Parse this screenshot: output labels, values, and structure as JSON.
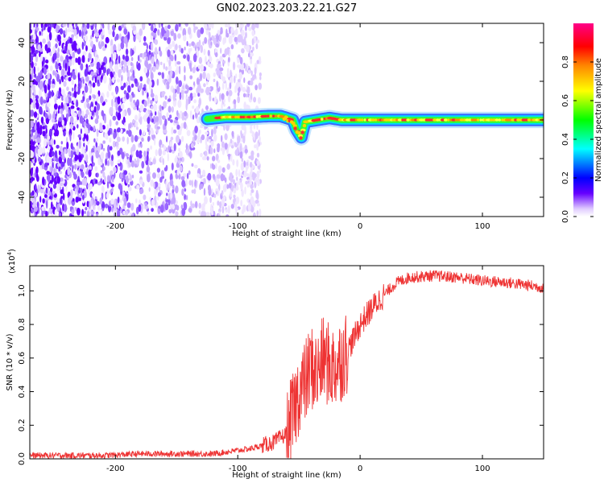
{
  "title": "GN02.2023.203.22.21.G27",
  "chart_data": [
    {
      "type": "heatmap",
      "xlabel": "Height of straight line (km)",
      "ylabel": "Frequency (Hz)",
      "xlim": [
        -270,
        150
      ],
      "ylim": [
        -50,
        50
      ],
      "x_ticks": [
        -200,
        -100,
        0,
        100
      ],
      "x_tick_labels": [
        "-200",
        "-100",
        "0",
        "100"
      ],
      "y_ticks": [
        40,
        20,
        0,
        -20,
        -40
      ],
      "y_tick_labels": [
        "40",
        "20",
        "0",
        "-20",
        "-40"
      ],
      "colorbar": {
        "label": "Normalized spectral amplitude",
        "range": [
          0,
          1
        ],
        "ticks": [
          0.0,
          0.2,
          0.4,
          0.6,
          0.8
        ],
        "tick_labels": [
          "0.0",
          "0.2",
          "0.4",
          "0.6",
          "0.8"
        ],
        "colormap": [
          "#ffffff",
          "#5500ff",
          "#0000ff",
          "#00ffff",
          "#00ff00",
          "#ffff00",
          "#ff8800",
          "#ff0000",
          "#ff0088"
        ]
      },
      "noise_region_x": [
        -270,
        -85
      ],
      "signal_band": {
        "x_start": -125,
        "x_end": 150,
        "frequency_hz": 0,
        "halfwidth_hz": 2
      },
      "signal_track": [
        {
          "x": -125,
          "y": 0.5
        },
        {
          "x": -110,
          "y": 1.5
        },
        {
          "x": -90,
          "y": 1.5
        },
        {
          "x": -75,
          "y": 2
        },
        {
          "x": -65,
          "y": 2
        },
        {
          "x": -60,
          "y": 1
        },
        {
          "x": -55,
          "y": 0
        },
        {
          "x": -52,
          "y": -5
        },
        {
          "x": -48,
          "y": -9
        },
        {
          "x": -45,
          "y": -1
        },
        {
          "x": -35,
          "y": 0
        },
        {
          "x": -25,
          "y": 1
        },
        {
          "x": -15,
          "y": 0
        },
        {
          "x": 0,
          "y": 0
        },
        {
          "x": 150,
          "y": 0
        }
      ]
    },
    {
      "type": "line",
      "xlabel": "Height of straight line (km)",
      "ylabel": "SNR (10 * v/v)",
      "scale_label": "(x10",
      "scale_exponent": "4",
      "scale_close": ")",
      "xlim": [
        -270,
        150
      ],
      "ylim": [
        0,
        1.15
      ],
      "x_ticks": [
        -200,
        -100,
        0,
        100
      ],
      "x_tick_labels": [
        "-200",
        "-100",
        "0",
        "100"
      ],
      "y_ticks": [
        0.0,
        0.2,
        0.4,
        0.6,
        0.8,
        1.0
      ],
      "y_tick_labels": [
        "0.0",
        "0.2",
        "0.4",
        "0.6",
        "0.8",
        "1.0"
      ],
      "color": "#ee3333",
      "series": [
        {
          "x": [
            -270,
            -240,
            -210,
            -180,
            -150,
            -120,
            -100,
            -90,
            -80,
            -70,
            -60,
            -55,
            -50,
            -45,
            -40,
            -35,
            -30,
            -25,
            -20,
            -15,
            -10,
            -5,
            0,
            10,
            20,
            30,
            40,
            60,
            80,
            100,
            120,
            150
          ],
          "values": [
            0.02,
            0.02,
            0.02,
            0.03,
            0.03,
            0.03,
            0.05,
            0.06,
            0.08,
            0.1,
            0.15,
            0.25,
            0.4,
            0.45,
            0.55,
            0.5,
            0.6,
            0.55,
            0.55,
            0.6,
            0.65,
            0.72,
            0.8,
            0.9,
            0.98,
            1.05,
            1.08,
            1.09,
            1.08,
            1.06,
            1.05,
            1.02
          ]
        }
      ]
    }
  ]
}
